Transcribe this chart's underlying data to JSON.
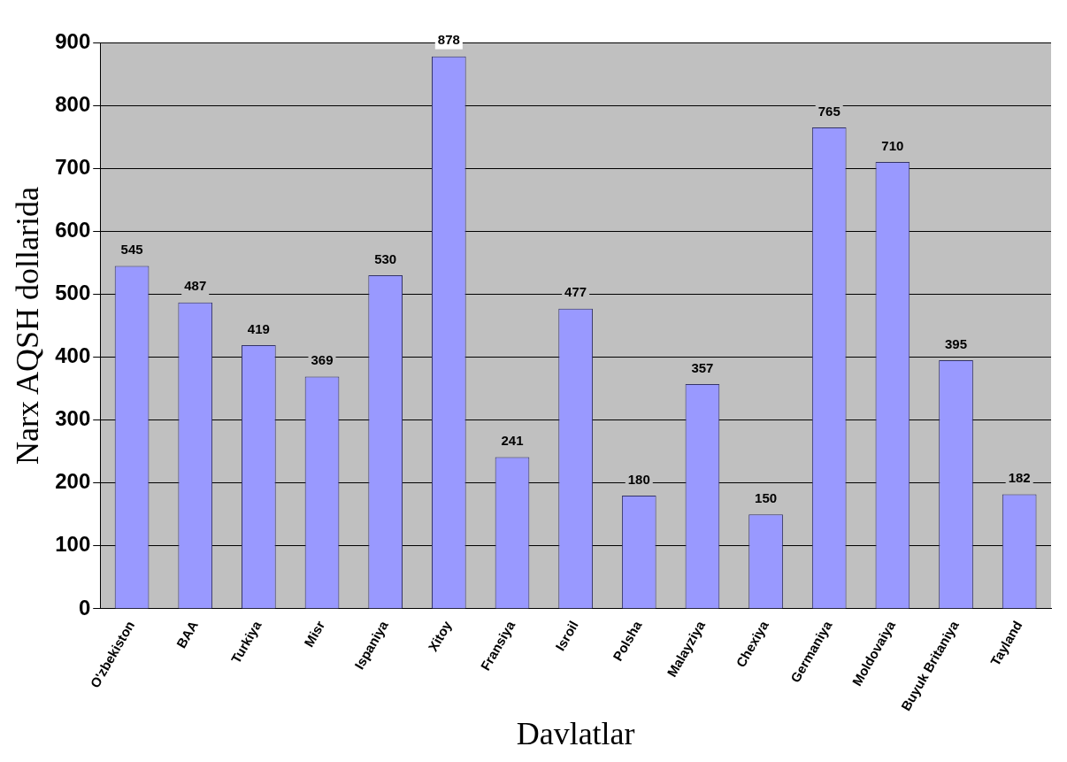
{
  "chart_data": {
    "type": "bar",
    "xlabel": "Davlatlar",
    "ylabel": "Narx AQSH dollarida",
    "categories": [
      "O'zbekiston",
      "BAA",
      "Turkiya",
      "Misr",
      "Ispaniya",
      "Xitoy",
      "Fransiya",
      "Isroil",
      "Polsha",
      "Malayziya",
      "Chexiya",
      "Germaniya",
      "Moldovaiya",
      "Buyuk Britaniya",
      "Tayland"
    ],
    "values": [
      545,
      487,
      419,
      369,
      530,
      878,
      241,
      477,
      180,
      357,
      150,
      765,
      710,
      395,
      182
    ],
    "color": "#9999ff",
    "ylim": [
      0,
      900
    ],
    "yticks": [
      0,
      100,
      200,
      300,
      400,
      500,
      600,
      700,
      800,
      900
    ],
    "grid": "y",
    "legend": false,
    "data_labels": true
  }
}
